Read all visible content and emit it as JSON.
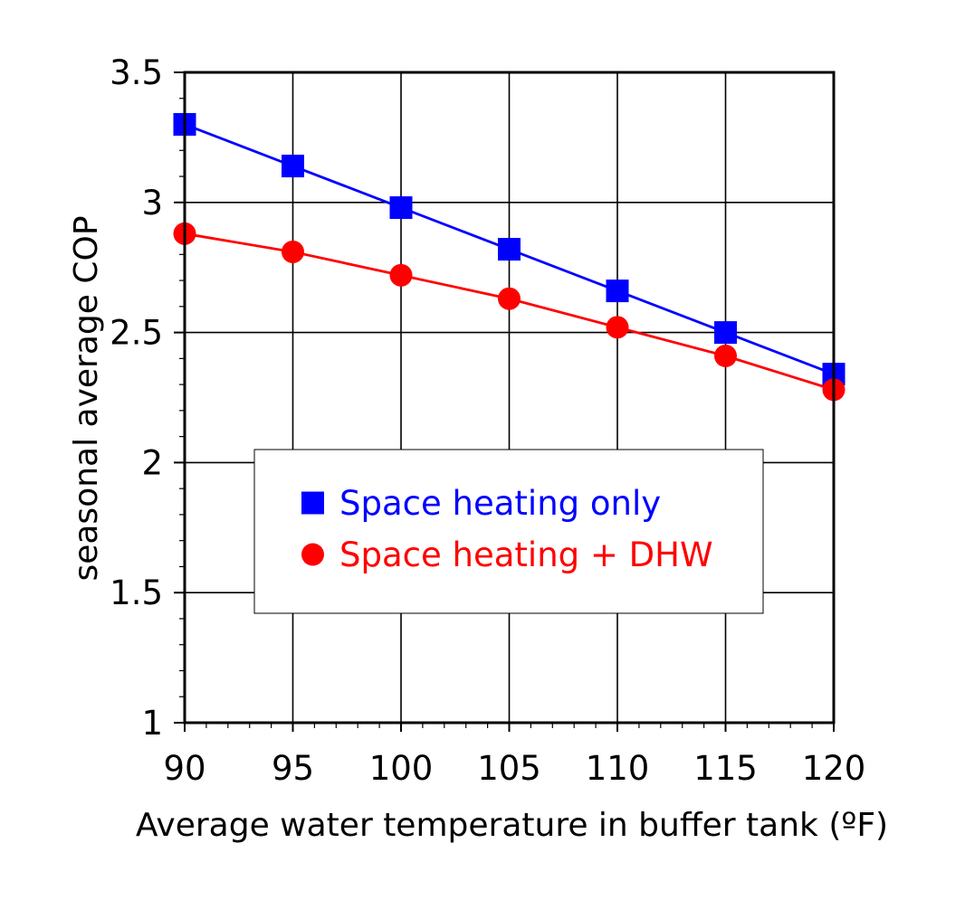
{
  "chart_data": {
    "type": "line",
    "title": "",
    "xlabel": "Average water temperature in buffer tank (ºF)",
    "ylabel": "seasonal average COP",
    "xlim": [
      90,
      120
    ],
    "ylim": [
      1,
      3.5
    ],
    "x_ticks": [
      "90",
      "95",
      "100",
      "105",
      "110",
      "115",
      "120"
    ],
    "y_ticks": [
      "1",
      "1.5",
      "2",
      "2.5",
      "3",
      "3.5"
    ],
    "grid": true,
    "legend_position": "center",
    "x": [
      90,
      95,
      100,
      105,
      110,
      115,
      120
    ],
    "series": [
      {
        "name": "Space heating only",
        "values": [
          3.3,
          3.14,
          2.98,
          2.82,
          2.66,
          2.5,
          2.34
        ],
        "color": "#0000ff",
        "marker": "square"
      },
      {
        "name": "Space heating + DHW",
        "values": [
          2.88,
          2.81,
          2.72,
          2.63,
          2.52,
          2.41,
          2.28
        ],
        "color": "#ff0000",
        "marker": "circle"
      }
    ]
  }
}
